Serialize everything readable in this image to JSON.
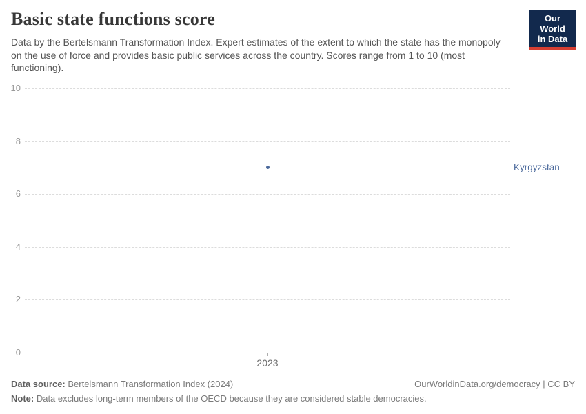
{
  "header": {
    "title": "Basic state functions score",
    "subtitle": "Data by the Bertelsmann Transformation Index. Expert estimates of the extent to which the state has the monopoly on the use of force and provides basic public services across the country. Scores range from 1 to 10 (most functioning).",
    "logo": {
      "line1": "Our World",
      "line2": "in Data",
      "bg_color": "#12294d",
      "accent_color": "#d63e32"
    }
  },
  "chart_data": {
    "type": "scatter",
    "title": "Basic state functions score",
    "x": [
      2023
    ],
    "xticks": [
      "2023"
    ],
    "series": [
      {
        "name": "Kyrgyzstan",
        "values": [
          7
        ],
        "color": "#4c6a9c"
      }
    ],
    "xlabel": "",
    "ylabel": "",
    "ylim": [
      0,
      10
    ],
    "yticks": [
      0,
      2,
      4,
      6,
      8,
      10
    ],
    "grid": "horizontal-dashed",
    "legend_position": "right-of-point"
  },
  "footer": {
    "source_label": "Data source:",
    "source_text": " Bertelsmann Transformation Index (2024)",
    "rights": "OurWorldinData.org/democracy | CC BY",
    "note_label": "Note:",
    "note_text": " Data excludes long-term members of the OECD because they are considered stable democracies."
  }
}
